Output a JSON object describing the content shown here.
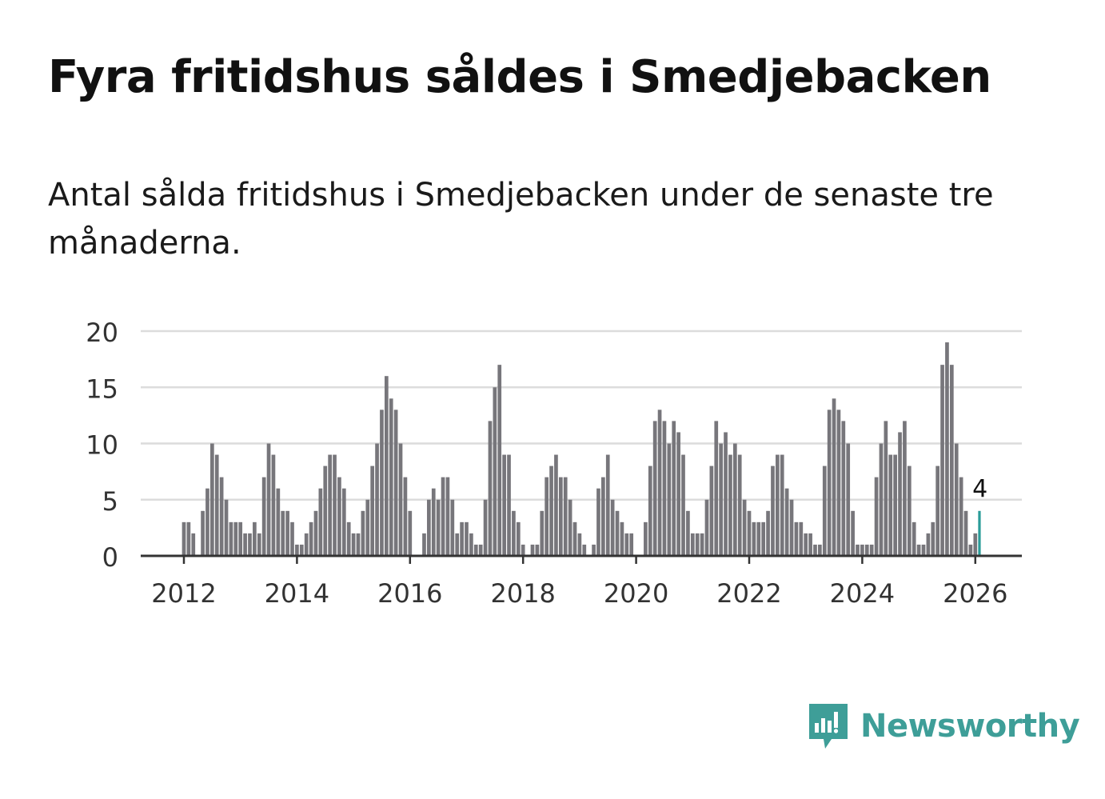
{
  "title": "Fyra fritidshus såldes i Smedjebacken",
  "subtitle": "Antal sålda fritidshus i Smedjebacken under de senaste tre månaderna.",
  "brand": {
    "name": "Newsworthy",
    "icon": "newsworthy-logo-icon",
    "color": "#3e9e98"
  },
  "chart_data": {
    "type": "bar",
    "title": "",
    "xlabel": "",
    "ylabel": "",
    "x_ticks": [
      "2012",
      "2014",
      "2016",
      "2018",
      "2020",
      "2022",
      "2024",
      "2026"
    ],
    "y_ticks": [
      0,
      5,
      10,
      15,
      20
    ],
    "ylim": [
      0,
      20
    ],
    "start": "2012-01",
    "grid": true,
    "bar_color": "#77767b",
    "highlight_color": "#2a9c99",
    "highlight_label": "4",
    "values": [
      3,
      3,
      2,
      0,
      4,
      6,
      10,
      9,
      7,
      5,
      3,
      3,
      3,
      2,
      2,
      3,
      2,
      7,
      10,
      9,
      6,
      4,
      4,
      3,
      1,
      1,
      2,
      3,
      4,
      6,
      8,
      9,
      9,
      7,
      6,
      3,
      2,
      2,
      4,
      5,
      8,
      10,
      13,
      16,
      14,
      13,
      10,
      7,
      4,
      0,
      0,
      2,
      5,
      6,
      5,
      7,
      7,
      5,
      2,
      3,
      3,
      2,
      1,
      1,
      5,
      12,
      15,
      17,
      9,
      9,
      4,
      3,
      1,
      0,
      1,
      1,
      4,
      7,
      8,
      9,
      7,
      7,
      5,
      3,
      2,
      1,
      0,
      1,
      6,
      7,
      9,
      5,
      4,
      3,
      2,
      2,
      0,
      0,
      3,
      8,
      12,
      13,
      12,
      10,
      12,
      11,
      9,
      4,
      2,
      2,
      2,
      5,
      8,
      12,
      10,
      11,
      9,
      10,
      9,
      5,
      4,
      3,
      3,
      3,
      4,
      8,
      9,
      9,
      6,
      5,
      3,
      3,
      2,
      2,
      1,
      1,
      8,
      13,
      14,
      13,
      12,
      10,
      4,
      1,
      1,
      1,
      1,
      7,
      10,
      12,
      9,
      9,
      11,
      12,
      8,
      3,
      1,
      1,
      2,
      3,
      8,
      17,
      19,
      17,
      10,
      7,
      4,
      1,
      2,
      4
    ]
  }
}
